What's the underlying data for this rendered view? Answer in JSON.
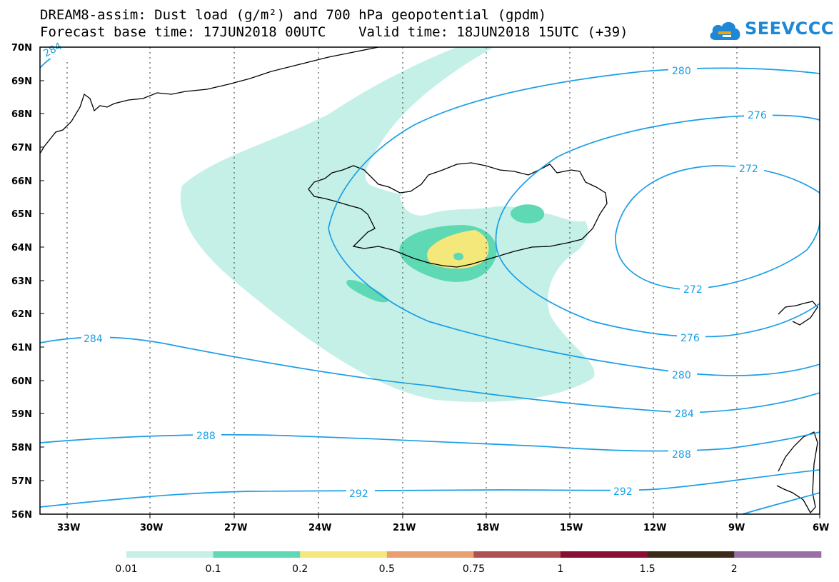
{
  "header": {
    "line1": "DREAM8-assim: Dust load (g/m²) and 700 hPa geopotential (gpdm)",
    "line2": "Forecast base time: 17JUN2018 00UTC    Valid time: 18JUN2018 15UTC (+39)"
  },
  "logo": {
    "text": "SEEVCCC",
    "icon": "cloud-icon"
  },
  "axes": {
    "lat_labels": [
      "70N",
      "69N",
      "68N",
      "67N",
      "66N",
      "65N",
      "64N",
      "63N",
      "62N",
      "61N",
      "60N",
      "59N",
      "58N",
      "57N",
      "56N"
    ],
    "lon_labels": [
      "33W",
      "30W",
      "27W",
      "24W",
      "21W",
      "18W",
      "15W",
      "12W",
      "9W",
      "6W"
    ]
  },
  "contours": {
    "color": "#1a9ee6",
    "labels": [
      "284",
      "280",
      "276",
      "272",
      "272",
      "276",
      "280",
      "284",
      "284",
      "288",
      "288",
      "292",
      "292"
    ]
  },
  "colorbar": {
    "colors": [
      "#c5f0e8",
      "#5fd9b3",
      "#f5e87a",
      "#e8a070",
      "#b05050",
      "#8a0d35",
      "#3a2a18",
      "#9a6fa8"
    ],
    "labels": [
      "0.01",
      "0.1",
      "0.2",
      "0.5",
      "0.75",
      "1",
      "1.5",
      "2"
    ]
  }
}
